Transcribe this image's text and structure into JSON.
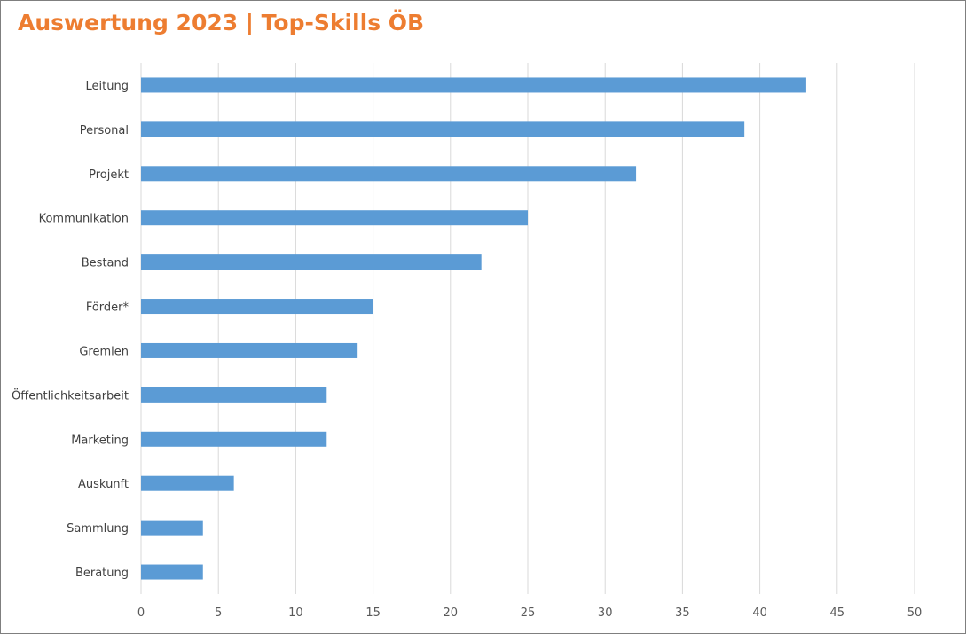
{
  "chart_data": {
    "type": "bar",
    "orientation": "horizontal",
    "title": "Auswertung 2023 | Top-Skills ÖB",
    "xlabel": "",
    "ylabel": "",
    "categories": [
      "Leitung",
      "Personal",
      "Projekt",
      "Kommunikation",
      "Bestand",
      "Förder*",
      "Gremien",
      "Öffentlichkeitsarbeit",
      "Marketing",
      "Auskunft",
      "Sammlung",
      "Beratung"
    ],
    "values": [
      43,
      39,
      32,
      25,
      22,
      15,
      14,
      12,
      12,
      6,
      4,
      4
    ],
    "xlim": [
      0,
      50
    ],
    "xticks": [
      0,
      5,
      10,
      15,
      20,
      25,
      30,
      35,
      40,
      45,
      50
    ],
    "grid": "vertical",
    "legend": "none",
    "colors": {
      "bar": "#5b9bd5",
      "title": "#ed7d31",
      "grid": "#d9d9d9",
      "text": "#404040",
      "frame": "#7f7f7f"
    }
  }
}
